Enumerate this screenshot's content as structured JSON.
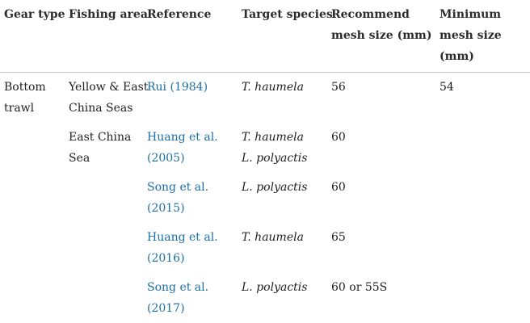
{
  "header": {
    "gear_type": "Gear type",
    "fishing_area": "Fishing area",
    "reference": "Reference",
    "target_species": "Target species",
    "recommend_mesh": [
      "Recommend",
      "mesh size (mm)"
    ],
    "minimum_mesh": [
      "Minimum",
      "mesh size",
      "(mm)"
    ]
  },
  "rows": [
    {
      "gear_type": [
        "Bottom",
        "trawl"
      ],
      "fishing_area": [
        "Yellow & East",
        "China Seas"
      ],
      "reference": [
        "Rui (1984)"
      ],
      "species": [
        "T. haumela"
      ],
      "recommend": "56",
      "minimum": "54"
    },
    {
      "fishing_area": [
        "East China",
        "Sea"
      ],
      "reference": [
        "Huang et al.",
        "(2005)"
      ],
      "species": [
        "T. haumela",
        "L. polyactis"
      ],
      "recommend": "60"
    },
    {
      "reference": [
        "Song et al.",
        "(2015)"
      ],
      "species": [
        "L. polyactis"
      ],
      "recommend": "60"
    },
    {
      "reference": [
        "Huang et al.",
        "(2016)"
      ],
      "species": [
        "T. haumela"
      ],
      "recommend": "65"
    },
    {
      "reference": [
        "Song et al.",
        "(2017)"
      ],
      "species": [
        "L. polyactis"
      ],
      "recommend": "60 or 55S"
    }
  ]
}
